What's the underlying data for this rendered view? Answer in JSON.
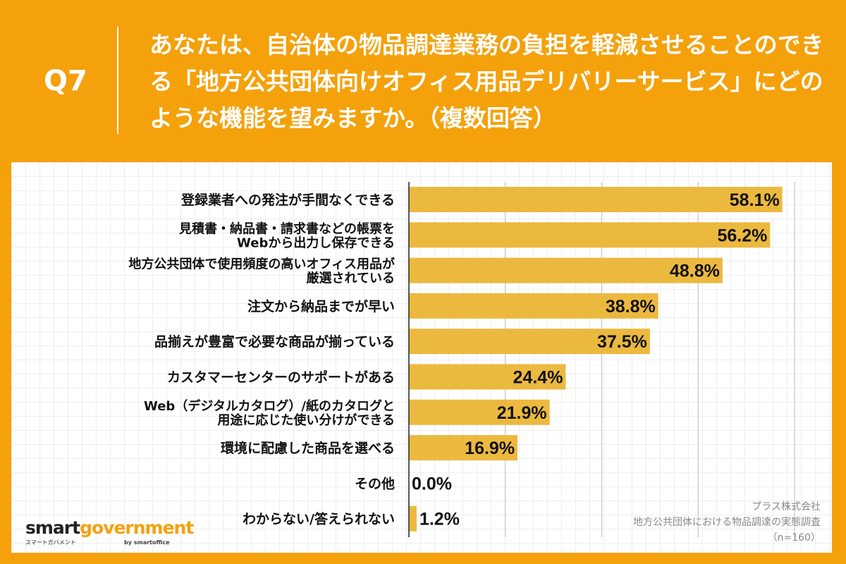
{
  "question": {
    "number": "Q7",
    "text": "あなたは、自治体の物品調達業務の負担を軽減させることのできる「地方公共団体向けオフィス用品デリバリーサービス」にどのような機能を望みますか。（複数回答）"
  },
  "chart_data": {
    "type": "bar",
    "orientation": "horizontal",
    "categories": [
      [
        "登録業者への発注が手間なくできる"
      ],
      [
        "見積書・納品書・請求書などの帳票を",
        "Webから出力し保存できる"
      ],
      [
        "地方公共団体で使用頻度の高いオフィス用品が",
        "厳選されている"
      ],
      [
        "注文から納品までが早い"
      ],
      [
        "品揃えが豊富で必要な商品が揃っている"
      ],
      [
        "カスタマーセンターのサポートがある"
      ],
      [
        "Web（デジタルカタログ）/紙のカタログと",
        "用途に応じた使い分けができる"
      ],
      [
        "環境に配慮した商品を選べる"
      ],
      [
        "その他"
      ],
      [
        "わからない/答えられない"
      ]
    ],
    "values": [
      58.1,
      56.2,
      48.8,
      38.8,
      37.5,
      24.4,
      21.9,
      16.9,
      0.0,
      1.2
    ],
    "value_labels": [
      "58.1%",
      "56.2%",
      "48.8%",
      "38.8%",
      "37.5%",
      "24.4%",
      "21.9%",
      "16.9%",
      "0.0%",
      "1.2%"
    ],
    "xlim": [
      0,
      60
    ],
    "xticks": [
      0,
      15,
      30,
      45,
      60
    ],
    "grid": true,
    "bar_color": "#ecb93f"
  },
  "source": {
    "company": "プラス株式会社",
    "survey": "地方公共団体における物品調達の実態調査",
    "n": "（n=160）"
  },
  "logo": {
    "text1": "smart",
    "text2": "government",
    "kana": "スマートガバメント",
    "by": "by smartoffice"
  },
  "colors": {
    "background": "#f4a10c",
    "bar": "#ecb93f"
  }
}
